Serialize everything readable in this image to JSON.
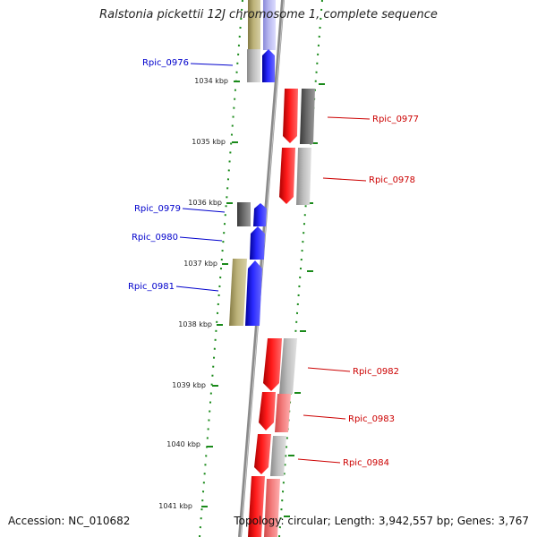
{
  "title": "Ralstonia pickettii 12J chromosome 1, complete sequence",
  "footer": {
    "accession": "Accession: NC_010682",
    "summary": "Topology: circular; Length: 3,942,557 bp; Genes: 3,767"
  },
  "colors": {
    "forward_cds": "#1a1aff",
    "forward_gene": "#a8a070",
    "reverse_cds": "#ff1a1a",
    "reverse_gene": "#9a9a9a",
    "backbone": "#888888",
    "ticks": "#1a8a1a",
    "forward_label": "#0000cc",
    "reverse_label": "#cc0000"
  },
  "scale_ticks": [
    "1034 kbp",
    "1035 kbp",
    "1036 kbp",
    "1037 kbp",
    "1038 kbp",
    "1039 kbp",
    "1040 kbp",
    "1041 kbp"
  ],
  "genes": [
    {
      "id": "Rpic_0976",
      "strand": "forward"
    },
    {
      "id": "Rpic_0977",
      "strand": "reverse"
    },
    {
      "id": "Rpic_0978",
      "strand": "reverse"
    },
    {
      "id": "Rpic_0979",
      "strand": "forward"
    },
    {
      "id": "Rpic_0980",
      "strand": "forward"
    },
    {
      "id": "Rpic_0981",
      "strand": "forward"
    },
    {
      "id": "Rpic_0982",
      "strand": "reverse"
    },
    {
      "id": "Rpic_0983",
      "strand": "reverse"
    },
    {
      "id": "Rpic_0984",
      "strand": "reverse"
    }
  ]
}
